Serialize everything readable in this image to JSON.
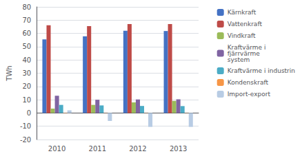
{
  "chart_data": {
    "type": "bar",
    "categories": [
      "2010",
      "2011",
      "2012",
      "2013"
    ],
    "series": [
      {
        "name": "Kärnkraft",
        "color": "#4472C4",
        "values": [
          55.5,
          57.8,
          62.0,
          61.8
        ]
      },
      {
        "name": "Vattenkraft",
        "color": "#BE4B48",
        "values": [
          66.2,
          65.5,
          67.0,
          67.0
        ]
      },
      {
        "name": "Vindkraft",
        "color": "#9BBB59",
        "values": [
          3.3,
          6.1,
          8.0,
          9.1
        ]
      },
      {
        "name": "Kraftvärme i\nfjärrvärme\nsystem",
        "color": "#8064A2",
        "values": [
          13.0,
          10.0,
          10.2,
          10.3
        ]
      },
      {
        "name": "Kraftvärme i industrin",
        "color": "#4BACC6",
        "values": [
          6.1,
          5.7,
          5.3,
          5.2
        ]
      },
      {
        "name": "Kondenskraft",
        "color": "#F79646",
        "values": [
          0.2,
          0.1,
          0.1,
          0.1
        ]
      },
      {
        "name": "Import-export",
        "color": "#B8CCE4",
        "values": [
          2.0,
          -6.0,
          -10.5,
          -10.5
        ]
      }
    ],
    "ylabel": "TWh",
    "ylim": [
      -20,
      80
    ],
    "yticks": [
      -20,
      -10,
      0,
      10,
      20,
      30,
      40,
      50,
      60,
      70,
      80
    ],
    "grid": true,
    "legend": "right"
  }
}
